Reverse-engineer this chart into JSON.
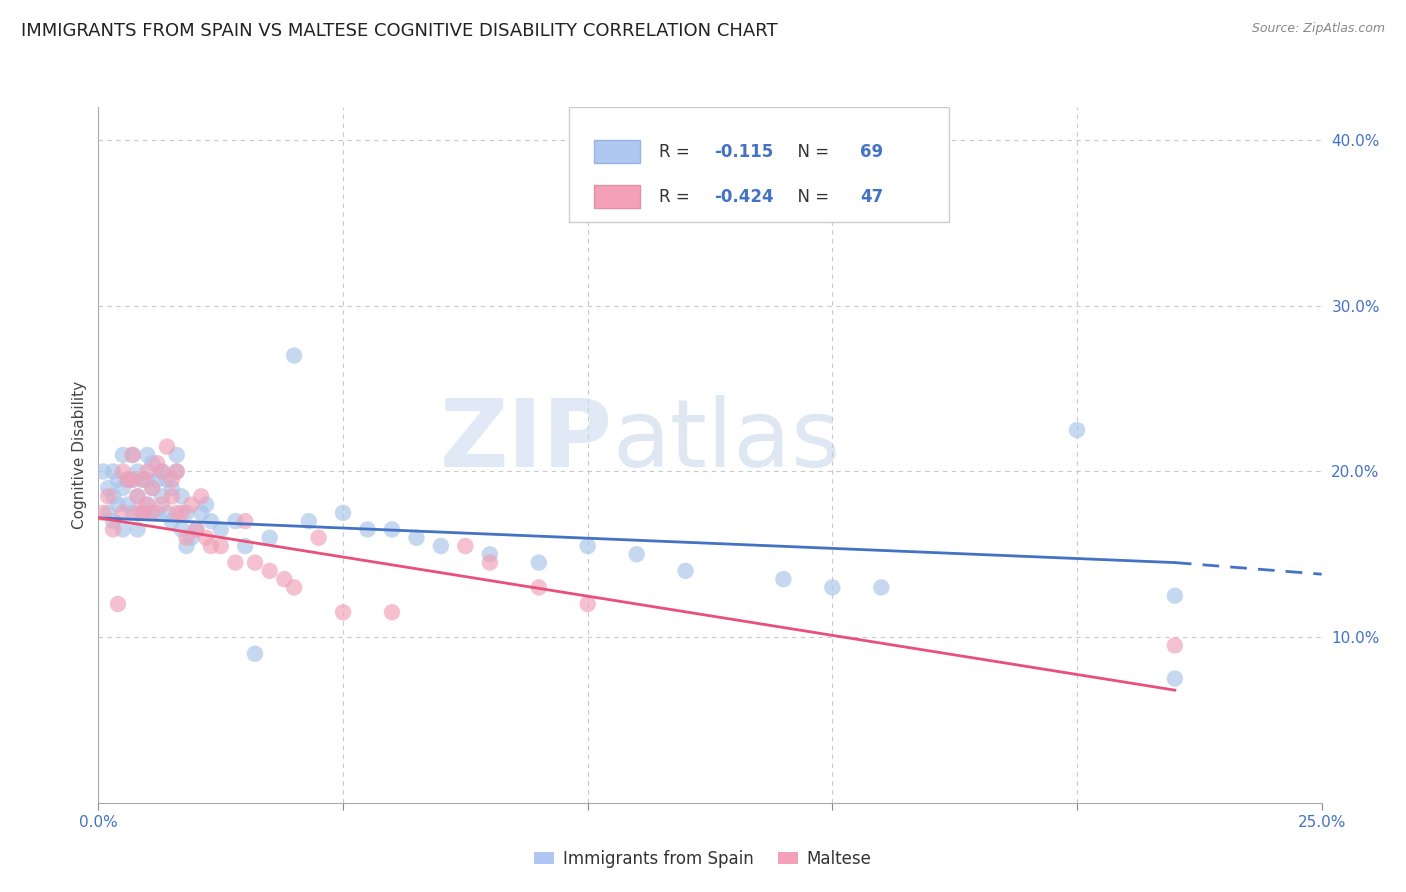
{
  "title": "IMMIGRANTS FROM SPAIN VS MALTESE COGNITIVE DISABILITY CORRELATION CHART",
  "source": "Source: ZipAtlas.com",
  "ylabel": "Cognitive Disability",
  "xlim": [
    0.0,
    0.25
  ],
  "ylim": [
    0.0,
    0.42
  ],
  "blue_color": "#a8c4e8",
  "pink_color": "#f0a0b8",
  "blue_line_color": "#4472c4",
  "pink_line_color": "#e8507a",
  "watermark_text": "ZIPatlas",
  "background_color": "#ffffff",
  "grid_color": "#c8c8c8",
  "title_fontsize": 13,
  "axis_label_fontsize": 11,
  "tick_fontsize": 11,
  "blue_scatter_x": [
    0.001,
    0.002,
    0.002,
    0.003,
    0.003,
    0.003,
    0.004,
    0.004,
    0.005,
    0.005,
    0.005,
    0.006,
    0.006,
    0.007,
    0.007,
    0.007,
    0.008,
    0.008,
    0.008,
    0.009,
    0.009,
    0.01,
    0.01,
    0.01,
    0.011,
    0.011,
    0.011,
    0.012,
    0.012,
    0.013,
    0.013,
    0.014,
    0.014,
    0.015,
    0.015,
    0.016,
    0.016,
    0.017,
    0.017,
    0.018,
    0.018,
    0.019,
    0.02,
    0.021,
    0.022,
    0.023,
    0.025,
    0.028,
    0.03,
    0.032,
    0.035,
    0.04,
    0.043,
    0.05,
    0.055,
    0.06,
    0.065,
    0.07,
    0.08,
    0.09,
    0.1,
    0.11,
    0.12,
    0.14,
    0.15,
    0.16,
    0.2,
    0.22,
    0.22
  ],
  "blue_scatter_y": [
    0.2,
    0.19,
    0.175,
    0.2,
    0.185,
    0.17,
    0.195,
    0.18,
    0.21,
    0.19,
    0.165,
    0.195,
    0.18,
    0.21,
    0.195,
    0.175,
    0.2,
    0.185,
    0.165,
    0.195,
    0.175,
    0.21,
    0.195,
    0.18,
    0.205,
    0.19,
    0.175,
    0.195,
    0.175,
    0.2,
    0.185,
    0.195,
    0.175,
    0.19,
    0.17,
    0.2,
    0.21,
    0.185,
    0.165,
    0.175,
    0.155,
    0.16,
    0.165,
    0.175,
    0.18,
    0.17,
    0.165,
    0.17,
    0.155,
    0.09,
    0.16,
    0.27,
    0.17,
    0.175,
    0.165,
    0.165,
    0.16,
    0.155,
    0.15,
    0.145,
    0.155,
    0.15,
    0.14,
    0.135,
    0.13,
    0.13,
    0.225,
    0.125,
    0.075
  ],
  "pink_scatter_x": [
    0.001,
    0.002,
    0.003,
    0.004,
    0.005,
    0.005,
    0.006,
    0.007,
    0.007,
    0.008,
    0.008,
    0.009,
    0.009,
    0.01,
    0.01,
    0.011,
    0.011,
    0.012,
    0.013,
    0.013,
    0.014,
    0.015,
    0.015,
    0.016,
    0.016,
    0.017,
    0.018,
    0.019,
    0.02,
    0.021,
    0.022,
    0.023,
    0.025,
    0.028,
    0.03,
    0.032,
    0.035,
    0.038,
    0.04,
    0.045,
    0.05,
    0.06,
    0.075,
    0.08,
    0.09,
    0.1,
    0.22
  ],
  "pink_scatter_y": [
    0.175,
    0.185,
    0.165,
    0.12,
    0.2,
    0.175,
    0.195,
    0.21,
    0.195,
    0.175,
    0.185,
    0.195,
    0.175,
    0.2,
    0.18,
    0.175,
    0.19,
    0.205,
    0.2,
    0.18,
    0.215,
    0.195,
    0.185,
    0.175,
    0.2,
    0.175,
    0.16,
    0.18,
    0.165,
    0.185,
    0.16,
    0.155,
    0.155,
    0.145,
    0.17,
    0.145,
    0.14,
    0.135,
    0.13,
    0.16,
    0.115,
    0.115,
    0.155,
    0.145,
    0.13,
    0.12,
    0.095
  ],
  "blue_line_x0": 0.0,
  "blue_line_y0": 0.172,
  "blue_line_x1": 0.22,
  "blue_line_y1": 0.145,
  "blue_line_xdash": 0.22,
  "blue_line_xend": 0.25,
  "blue_line_ydash_start": 0.145,
  "blue_line_ydash_end": 0.138,
  "pink_line_x0": 0.0,
  "pink_line_y0": 0.172,
  "pink_line_x1": 0.22,
  "pink_line_y1": 0.068
}
